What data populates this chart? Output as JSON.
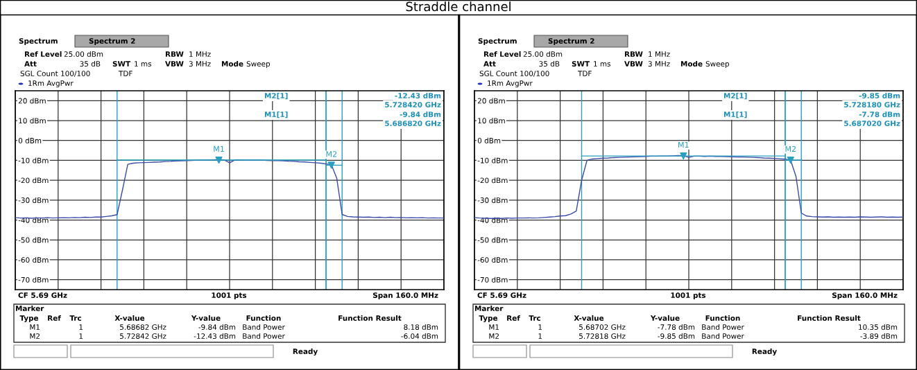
{
  "chart_data": [
    {
      "type": "line",
      "title": "Straddle channel",
      "categories": [
        null,
        null,
        null,
        null,
        null,
        null,
        null,
        null,
        null,
        null,
        null,
        null,
        null,
        null,
        null,
        null,
        null,
        null,
        null,
        null,
        null,
        null,
        null,
        null,
        null,
        null,
        null,
        null,
        null,
        null,
        null,
        null,
        null,
        null,
        null,
        null,
        null,
        null,
        null,
        null,
        null,
        null,
        null,
        null,
        null,
        null,
        null,
        null,
        null,
        null,
        null,
        null,
        null,
        null,
        null,
        null,
        null,
        null,
        null,
        null,
        null,
        null,
        null,
        null,
        null,
        null,
        null,
        null,
        null,
        null,
        null,
        null,
        null,
        null,
        null,
        null,
        null,
        null,
        null,
        null,
        null
      ],
      "ylim": [
        -75,
        25
      ],
      "yticks": [
        {
          "value": 20,
          "label": "20 dBm"
        },
        {
          "value": 10,
          "label": "10 dBm"
        },
        {
          "value": 0,
          "label": "0 dBm"
        },
        {
          "value": -10,
          "label": "-10 dBm"
        },
        {
          "value": -20,
          "label": "-20 dBm"
        },
        {
          "value": -30,
          "label": "-30 dBm"
        },
        {
          "value": -40,
          "label": "-40 dBm"
        },
        {
          "value": -50,
          "label": "-50 dBm"
        },
        {
          "value": -60,
          "label": "-60 dBm"
        },
        {
          "value": -70,
          "label": "-70 dBm"
        }
      ],
      "tick_labels": "y",
      "grid": true,
      "series": [
        {
          "type": "line",
          "color": "#3a4aa8",
          "marker": "none",
          "values": [
            -38.8,
            -39.0,
            -38.9,
            -39.1,
            -38.9,
            -39.0,
            -38.8,
            -39.0,
            -38.9,
            -38.8,
            -38.9,
            -38.7,
            -38.8,
            -38.6,
            -38.7,
            -38.5,
            -38.5,
            -38.2,
            -37.9,
            -37.3,
            -25,
            -12.0,
            -11.4,
            -11.2,
            -11.1,
            -11.0,
            -10.9,
            -10.8,
            -10.6,
            -10.5,
            -10.3,
            -10.2,
            -10.1,
            -10.0,
            -9.9,
            -9.9,
            -9.8,
            -9.7,
            -9.6,
            -9.8,
            -11.2,
            -9.8,
            -9.8,
            -9.9,
            -9.8,
            -9.9,
            -9.9,
            -10.0,
            -10.1,
            -10.1,
            -10.2,
            -10.4,
            -10.5,
            -10.7,
            -10.8,
            -11.0,
            -11.2,
            -11.4,
            -11.8,
            -12.2,
            -19,
            -37.2,
            -38.2,
            -38.4,
            -38.5,
            -38.6,
            -38.5,
            -38.7,
            -38.6,
            -38.8,
            -38.6,
            -38.8,
            -38.7,
            -38.9,
            -38.8,
            -38.9,
            -38.8,
            -39.0,
            -38.9,
            -39.0,
            -39.0
          ]
        },
        {
          "type": "line",
          "color": "#2a9fc0",
          "marker": "none",
          "values": [
            null,
            null,
            null,
            null,
            null,
            null,
            null,
            null,
            null,
            null,
            null,
            null,
            null,
            null,
            null,
            null,
            null,
            null,
            null,
            -9.84,
            -9.84,
            -9.84,
            -9.84,
            -9.84,
            -9.84,
            -9.84,
            -9.84,
            -9.84,
            -9.84,
            -9.84,
            -9.84,
            -9.84,
            -9.84,
            -9.84,
            -9.84,
            -9.84,
            -9.84,
            -9.84,
            -9.84,
            -9.84,
            -9.84,
            -9.84,
            -9.84,
            -9.84,
            -9.84,
            -9.84,
            -9.84,
            -9.84,
            -9.84,
            -9.84,
            -9.84,
            -9.84,
            -9.84,
            -9.84,
            -9.84,
            -9.84,
            -9.84,
            -9.84,
            -9.84,
            null,
            null,
            null,
            null,
            null,
            null,
            null,
            null,
            null,
            null,
            null,
            null,
            null,
            null,
            null,
            null,
            null,
            null,
            null,
            null,
            null,
            null
          ]
        },
        {
          "type": "line",
          "color": "#2a9fc0",
          "marker": "none",
          "values": [
            null,
            null,
            null,
            null,
            null,
            null,
            null,
            null,
            null,
            null,
            null,
            null,
            null,
            null,
            null,
            null,
            null,
            null,
            null,
            null,
            null,
            null,
            null,
            null,
            null,
            null,
            null,
            null,
            null,
            null,
            null,
            null,
            null,
            null,
            null,
            null,
            null,
            null,
            null,
            null,
            null,
            null,
            null,
            null,
            null,
            null,
            null,
            null,
            null,
            null,
            null,
            null,
            null,
            null,
            null,
            null,
            null,
            null,
            -12.43,
            -12.43,
            -12.43,
            -12.43,
            null,
            null,
            null,
            null,
            null,
            null,
            null,
            null,
            null,
            null,
            null,
            null,
            null,
            null,
            null,
            null,
            null,
            null,
            null
          ]
        },
        {
          "type": "scatter",
          "color": "#2a9fc0",
          "marker": "triangle",
          "values": [
            null,
            null,
            null,
            null,
            null,
            null,
            null,
            null,
            null,
            null,
            null,
            null,
            null,
            null,
            null,
            null,
            null,
            null,
            null,
            null,
            null,
            null,
            null,
            null,
            null,
            null,
            null,
            null,
            null,
            null,
            null,
            null,
            null,
            null,
            null,
            null,
            null,
            null,
            -9.84,
            null,
            null,
            null,
            null,
            null,
            null,
            null,
            null,
            null,
            null,
            null,
            null,
            null,
            null,
            null,
            null,
            null,
            null,
            null,
            null,
            -12.43,
            null,
            null,
            null,
            null,
            null,
            null,
            null,
            null,
            null,
            null,
            null,
            null,
            null,
            null,
            null,
            null,
            null,
            null,
            null,
            null,
            null
          ],
          "value_labels": [
            null,
            null,
            null,
            null,
            null,
            null,
            null,
            null,
            null,
            null,
            null,
            null,
            null,
            null,
            null,
            null,
            null,
            null,
            null,
            null,
            null,
            null,
            null,
            null,
            null,
            null,
            null,
            null,
            null,
            null,
            null,
            null,
            null,
            null,
            null,
            null,
            null,
            null,
            "M1",
            null,
            null,
            null,
            null,
            null,
            null,
            null,
            null,
            null,
            null,
            null,
            null,
            null,
            null,
            null,
            null,
            null,
            null,
            null,
            null,
            "M2",
            null,
            null,
            null,
            null,
            null,
            null,
            null,
            null,
            null,
            null,
            null,
            null,
            null,
            null,
            null,
            null,
            null,
            null,
            null,
            null,
            null
          ]
        }
      ],
      "annotations": [
        "Spectrum",
        "Spectrum 2",
        "Ref Level",
        "25.00 dBm",
        "RBW",
        "1 MHz",
        "Att",
        "35 dB",
        "SWT",
        "1 ms",
        "VBW",
        "3 MHz",
        "Mode",
        "Sweep",
        "SGL Count 100/100",
        "TDF",
        "1Rm AvgPwr",
        "M2[1]",
        "-12.43 dBm",
        "5.728420 GHz",
        "M1[1]",
        "-9.84 dBm",
        "5.686820 GHz",
        "CF 5.69 GHz",
        "1001 pts",
        "Span 160.0 MHz",
        "Marker",
        "Type",
        "Ref",
        "Trc",
        "X-value",
        "Y-value",
        "Function",
        "Function Result",
        "M1",
        "1",
        "5.68682 GHz",
        "-9.84 dBm",
        "Band Power",
        "8.18 dBm",
        "M2",
        "1",
        "5.72842 GHz",
        "-12.43 dBm",
        "Band Power",
        "-6.04 dBm",
        "Ready"
      ]
    },
    {
      "type": "line",
      "categories": [
        null,
        null,
        null,
        null,
        null,
        null,
        null,
        null,
        null,
        null,
        null,
        null,
        null,
        null,
        null,
        null,
        null,
        null,
        null,
        null,
        null,
        null,
        null,
        null,
        null,
        null,
        null,
        null,
        null,
        null,
        null,
        null,
        null,
        null,
        null,
        null,
        null,
        null,
        null,
        null,
        null,
        null,
        null,
        null,
        null,
        null,
        null,
        null,
        null,
        null,
        null,
        null,
        null,
        null,
        null,
        null,
        null,
        null,
        null,
        null,
        null,
        null,
        null,
        null,
        null,
        null,
        null,
        null,
        null,
        null,
        null,
        null,
        null,
        null,
        null,
        null,
        null,
        null,
        null,
        null,
        null
      ],
      "ylim": [
        -75,
        25
      ],
      "yticks": [
        {
          "value": 20,
          "label": "20 dBm"
        },
        {
          "value": 10,
          "label": "10 dBm"
        },
        {
          "value": 0,
          "label": "0 dBm"
        },
        {
          "value": -10,
          "label": "-10 dBm"
        },
        {
          "value": -20,
          "label": "-20 dBm"
        },
        {
          "value": -30,
          "label": "-30 dBm"
        },
        {
          "value": -40,
          "label": "-40 dBm"
        },
        {
          "value": -50,
          "label": "-50 dBm"
        },
        {
          "value": -60,
          "label": "-60 dBm"
        },
        {
          "value": -70,
          "label": "-70 dBm"
        }
      ],
      "tick_labels": "y",
      "grid": true,
      "series": [
        {
          "type": "line",
          "color": "#3a4aa8",
          "marker": "none",
          "values": [
            -38.8,
            -39.0,
            -39.1,
            -39.2,
            -39.1,
            -39.2,
            -39.0,
            -39.1,
            -39.0,
            -39.0,
            -38.9,
            -39.0,
            -38.9,
            -38.7,
            -38.5,
            -38.3,
            -38.0,
            -37.8,
            -37.0,
            -35.5,
            -20,
            -10.0,
            -9.3,
            -9.1,
            -8.9,
            -8.8,
            -8.6,
            -8.5,
            -8.4,
            -8.3,
            -8.2,
            -8.1,
            -8.0,
            -7.9,
            -7.9,
            -7.8,
            -7.8,
            -7.7,
            -7.6,
            -7.7,
            -8.5,
            -7.9,
            -7.9,
            -8.0,
            -7.9,
            -8.0,
            -8.0,
            -8.1,
            -8.2,
            -8.3,
            -8.3,
            -8.4,
            -8.5,
            -8.6,
            -8.8,
            -8.9,
            -9.0,
            -9.2,
            -9.4,
            -9.9,
            -18,
            -36.5,
            -38.0,
            -38.3,
            -38.4,
            -38.5,
            -38.4,
            -38.6,
            -38.5,
            -38.6,
            -38.5,
            -38.6,
            -38.4,
            -38.5,
            -38.6,
            -38.5,
            -38.4,
            -38.6,
            -38.5,
            -38.6,
            -38.5
          ]
        },
        {
          "type": "line",
          "color": "#2a9fc0",
          "marker": "none",
          "values": [
            null,
            null,
            null,
            null,
            null,
            null,
            null,
            null,
            null,
            null,
            null,
            null,
            null,
            null,
            null,
            null,
            null,
            null,
            null,
            null,
            -7.78,
            -7.78,
            -7.78,
            -7.78,
            -7.78,
            -7.78,
            -7.78,
            -7.78,
            -7.78,
            -7.78,
            -7.78,
            -7.78,
            -7.78,
            -7.78,
            -7.78,
            -7.78,
            -7.78,
            -7.78,
            -7.78,
            -7.78,
            -7.78,
            -7.78,
            -7.78,
            -7.78,
            -7.78,
            -7.78,
            -7.78,
            -7.78,
            -7.78,
            -7.78,
            -7.78,
            -7.78,
            -7.78,
            -7.78,
            -7.78,
            -7.78,
            -7.78,
            -7.78,
            -7.78,
            null,
            null,
            null,
            null,
            null,
            null,
            null,
            null,
            null,
            null,
            null,
            null,
            null,
            null,
            null,
            null,
            null,
            null,
            null,
            null,
            null,
            null
          ]
        },
        {
          "type": "line",
          "color": "#2a9fc0",
          "marker": "none",
          "values": [
            null,
            null,
            null,
            null,
            null,
            null,
            null,
            null,
            null,
            null,
            null,
            null,
            null,
            null,
            null,
            null,
            null,
            null,
            null,
            null,
            null,
            null,
            null,
            null,
            null,
            null,
            null,
            null,
            null,
            null,
            null,
            null,
            null,
            null,
            null,
            null,
            null,
            null,
            null,
            null,
            null,
            null,
            null,
            null,
            null,
            null,
            null,
            null,
            null,
            null,
            null,
            null,
            null,
            null,
            null,
            null,
            null,
            null,
            -9.85,
            -9.85,
            -9.85,
            -9.85,
            null,
            null,
            null,
            null,
            null,
            null,
            null,
            null,
            null,
            null,
            null,
            null,
            null,
            null,
            null,
            null,
            null,
            null,
            null
          ]
        },
        {
          "type": "scatter",
          "color": "#2a9fc0",
          "marker": "triangle",
          "values": [
            null,
            null,
            null,
            null,
            null,
            null,
            null,
            null,
            null,
            null,
            null,
            null,
            null,
            null,
            null,
            null,
            null,
            null,
            null,
            null,
            null,
            null,
            null,
            null,
            null,
            null,
            null,
            null,
            null,
            null,
            null,
            null,
            null,
            null,
            null,
            null,
            null,
            null,
            null,
            -7.78,
            null,
            null,
            null,
            null,
            null,
            null,
            null,
            null,
            null,
            null,
            null,
            null,
            null,
            null,
            null,
            null,
            null,
            null,
            null,
            -9.85,
            null,
            null,
            null,
            null,
            null,
            null,
            null,
            null,
            null,
            null,
            null,
            null,
            null,
            null,
            null,
            null,
            null,
            null,
            null,
            null,
            null
          ],
          "value_labels": [
            null,
            null,
            null,
            null,
            null,
            null,
            null,
            null,
            null,
            null,
            null,
            null,
            null,
            null,
            null,
            null,
            null,
            null,
            null,
            null,
            null,
            null,
            null,
            null,
            null,
            null,
            null,
            null,
            null,
            null,
            null,
            null,
            null,
            null,
            null,
            null,
            null,
            null,
            null,
            "M1",
            null,
            null,
            null,
            null,
            null,
            null,
            null,
            null,
            null,
            null,
            null,
            null,
            null,
            null,
            null,
            null,
            null,
            null,
            null,
            "M2",
            null,
            null,
            null,
            null,
            null,
            null,
            null,
            null,
            null,
            null,
            null,
            null,
            null,
            null,
            null,
            null,
            null,
            null,
            null,
            null,
            null
          ]
        }
      ],
      "annotations": [
        "Spectrum",
        "Spectrum 2",
        "Ref Level",
        "25.00 dBm",
        "RBW",
        "1 MHz",
        "Att",
        "35 dB",
        "SWT",
        "1 ms",
        "VBW",
        "3 MHz",
        "Mode",
        "Sweep",
        "SGL Count 100/100",
        "TDF",
        "1Rm AvgPwr",
        "M2[1]",
        "-9.85 dBm",
        "5.728180 GHz",
        "M1[1]",
        "-7.78 dBm",
        "5.687020 GHz",
        "CF 5.69 GHz",
        "1001 pts",
        "Span 160.0 MHz",
        "Marker",
        "Type",
        "Ref",
        "Trc",
        "X-value",
        "Y-value",
        "Function",
        "Function Result",
        "M1",
        "1",
        "5.68702 GHz",
        "-7.78 dBm",
        "Band Power",
        "10.35 dBm",
        "M2",
        "1",
        "5.72818 GHz",
        "-9.85 dBm",
        "Band Power",
        "-3.89 dBm",
        "Ready"
      ]
    }
  ]
}
